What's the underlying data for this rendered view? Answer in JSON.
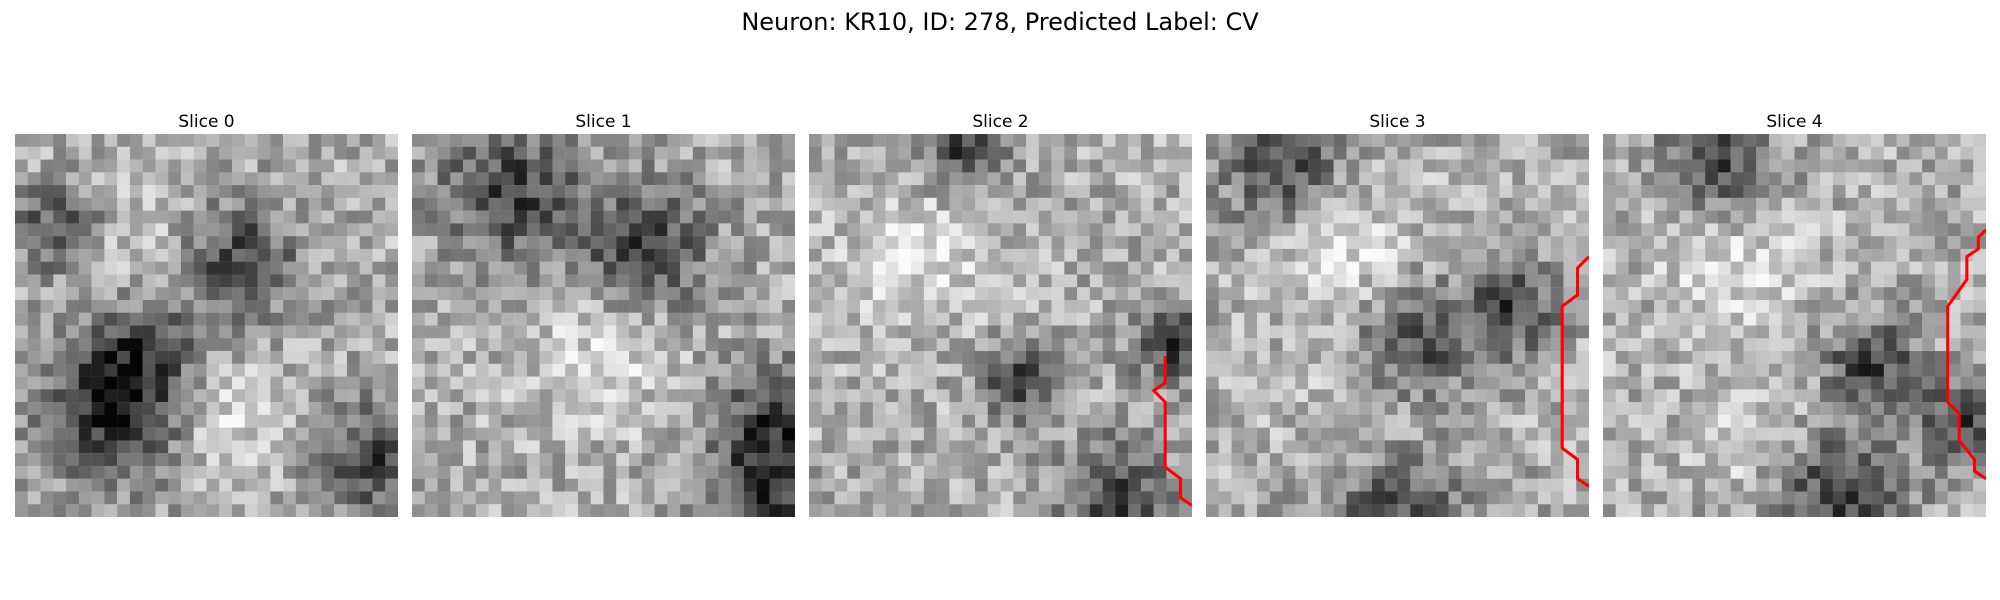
{
  "figure": {
    "title": "Neuron: KR10, ID: 278, Predicted Label: CV",
    "colormap": "gray",
    "contour_color": "#ff0000"
  },
  "slices": [
    {
      "title": "Slice 0",
      "seed": 11,
      "dark": [
        [
          0.58,
          0.33,
          0.16
        ],
        [
          0.12,
          0.25,
          0.12
        ],
        [
          0.3,
          0.58,
          0.18
        ],
        [
          0.25,
          0.75,
          0.18
        ],
        [
          0.95,
          0.85,
          0.15
        ]
      ],
      "light": [
        [
          0.3,
          0.33,
          0.2
        ],
        [
          0.55,
          0.75,
          0.15
        ]
      ],
      "contour": []
    },
    {
      "title": "Slice 1",
      "seed": 23,
      "dark": [
        [
          0.25,
          0.15,
          0.18
        ],
        [
          0.6,
          0.3,
          0.18
        ],
        [
          0.92,
          0.95,
          0.15
        ],
        [
          0.95,
          0.75,
          0.15
        ]
      ],
      "light": [
        [
          0.5,
          0.55,
          0.2
        ]
      ],
      "contour": []
    },
    {
      "title": "Slice 2",
      "seed": 37,
      "dark": [
        [
          0.4,
          0.05,
          0.12
        ],
        [
          0.55,
          0.65,
          0.1
        ],
        [
          0.8,
          0.95,
          0.15
        ],
        [
          0.95,
          0.55,
          0.1
        ]
      ],
      "light": [
        [
          0.3,
          0.3,
          0.2
        ]
      ],
      "contour": [
        [
          0.93,
          0.58
        ],
        [
          0.93,
          0.6
        ],
        [
          0.93,
          0.65
        ],
        [
          0.9,
          0.67
        ],
        [
          0.93,
          0.7
        ],
        [
          0.93,
          0.87
        ],
        [
          0.97,
          0.9
        ],
        [
          0.97,
          0.95
        ],
        [
          1.0,
          0.97
        ]
      ]
    },
    {
      "title": "Slice 3",
      "seed": 49,
      "dark": [
        [
          0.5,
          0.97,
          0.2
        ],
        [
          0.2,
          0.1,
          0.15
        ],
        [
          0.55,
          0.55,
          0.15
        ],
        [
          0.8,
          0.45,
          0.12
        ]
      ],
      "light": [
        [
          0.35,
          0.3,
          0.2
        ],
        [
          0.45,
          0.8,
          0.2
        ]
      ],
      "contour": [
        [
          1.0,
          0.32
        ],
        [
          0.97,
          0.35
        ],
        [
          0.97,
          0.42
        ],
        [
          0.93,
          0.45
        ],
        [
          0.93,
          0.82
        ],
        [
          0.97,
          0.85
        ],
        [
          0.97,
          0.9
        ],
        [
          1.0,
          0.92
        ]
      ]
    },
    {
      "title": "Slice 4",
      "seed": 61,
      "dark": [
        [
          0.3,
          0.08,
          0.15
        ],
        [
          0.6,
          0.95,
          0.18
        ],
        [
          0.7,
          0.6,
          0.12
        ],
        [
          0.95,
          0.75,
          0.12
        ]
      ],
      "light": [
        [
          0.35,
          0.35,
          0.2
        ],
        [
          0.4,
          0.8,
          0.15
        ]
      ],
      "contour": [
        [
          1.0,
          0.25
        ],
        [
          0.98,
          0.27
        ],
        [
          0.98,
          0.3
        ],
        [
          0.95,
          0.32
        ],
        [
          0.95,
          0.38
        ],
        [
          0.9,
          0.45
        ],
        [
          0.9,
          0.7
        ],
        [
          0.93,
          0.73
        ],
        [
          0.93,
          0.8
        ],
        [
          0.97,
          0.85
        ],
        [
          0.97,
          0.88
        ],
        [
          1.0,
          0.9
        ]
      ]
    }
  ]
}
